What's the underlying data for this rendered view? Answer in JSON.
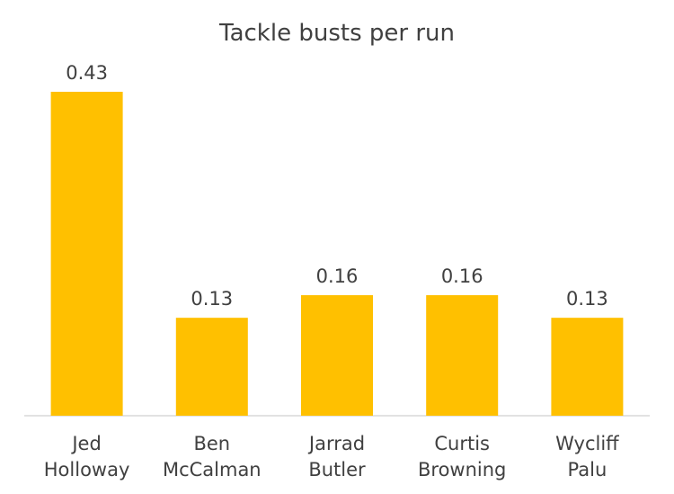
{
  "chart_data": {
    "type": "bar",
    "title": "Tackle busts per run",
    "categories": [
      [
        "Jed",
        "Holloway"
      ],
      [
        "Ben",
        "McCalman"
      ],
      [
        "Jarrad",
        "Butler"
      ],
      [
        "Curtis",
        "Browning"
      ],
      [
        "Wycliff",
        "Palu"
      ]
    ],
    "values": [
      0.43,
      0.13,
      0.16,
      0.16,
      0.13
    ],
    "value_labels": [
      "0.43",
      "0.13",
      "0.16",
      "0.16",
      "0.13"
    ],
    "xlabel": "",
    "ylabel": "",
    "ylim": [
      0,
      0.43
    ],
    "grid": false,
    "legend": "none",
    "colors": {
      "bar": "#FFC000",
      "text": "#404040",
      "axis": "#D9D9D9"
    }
  }
}
